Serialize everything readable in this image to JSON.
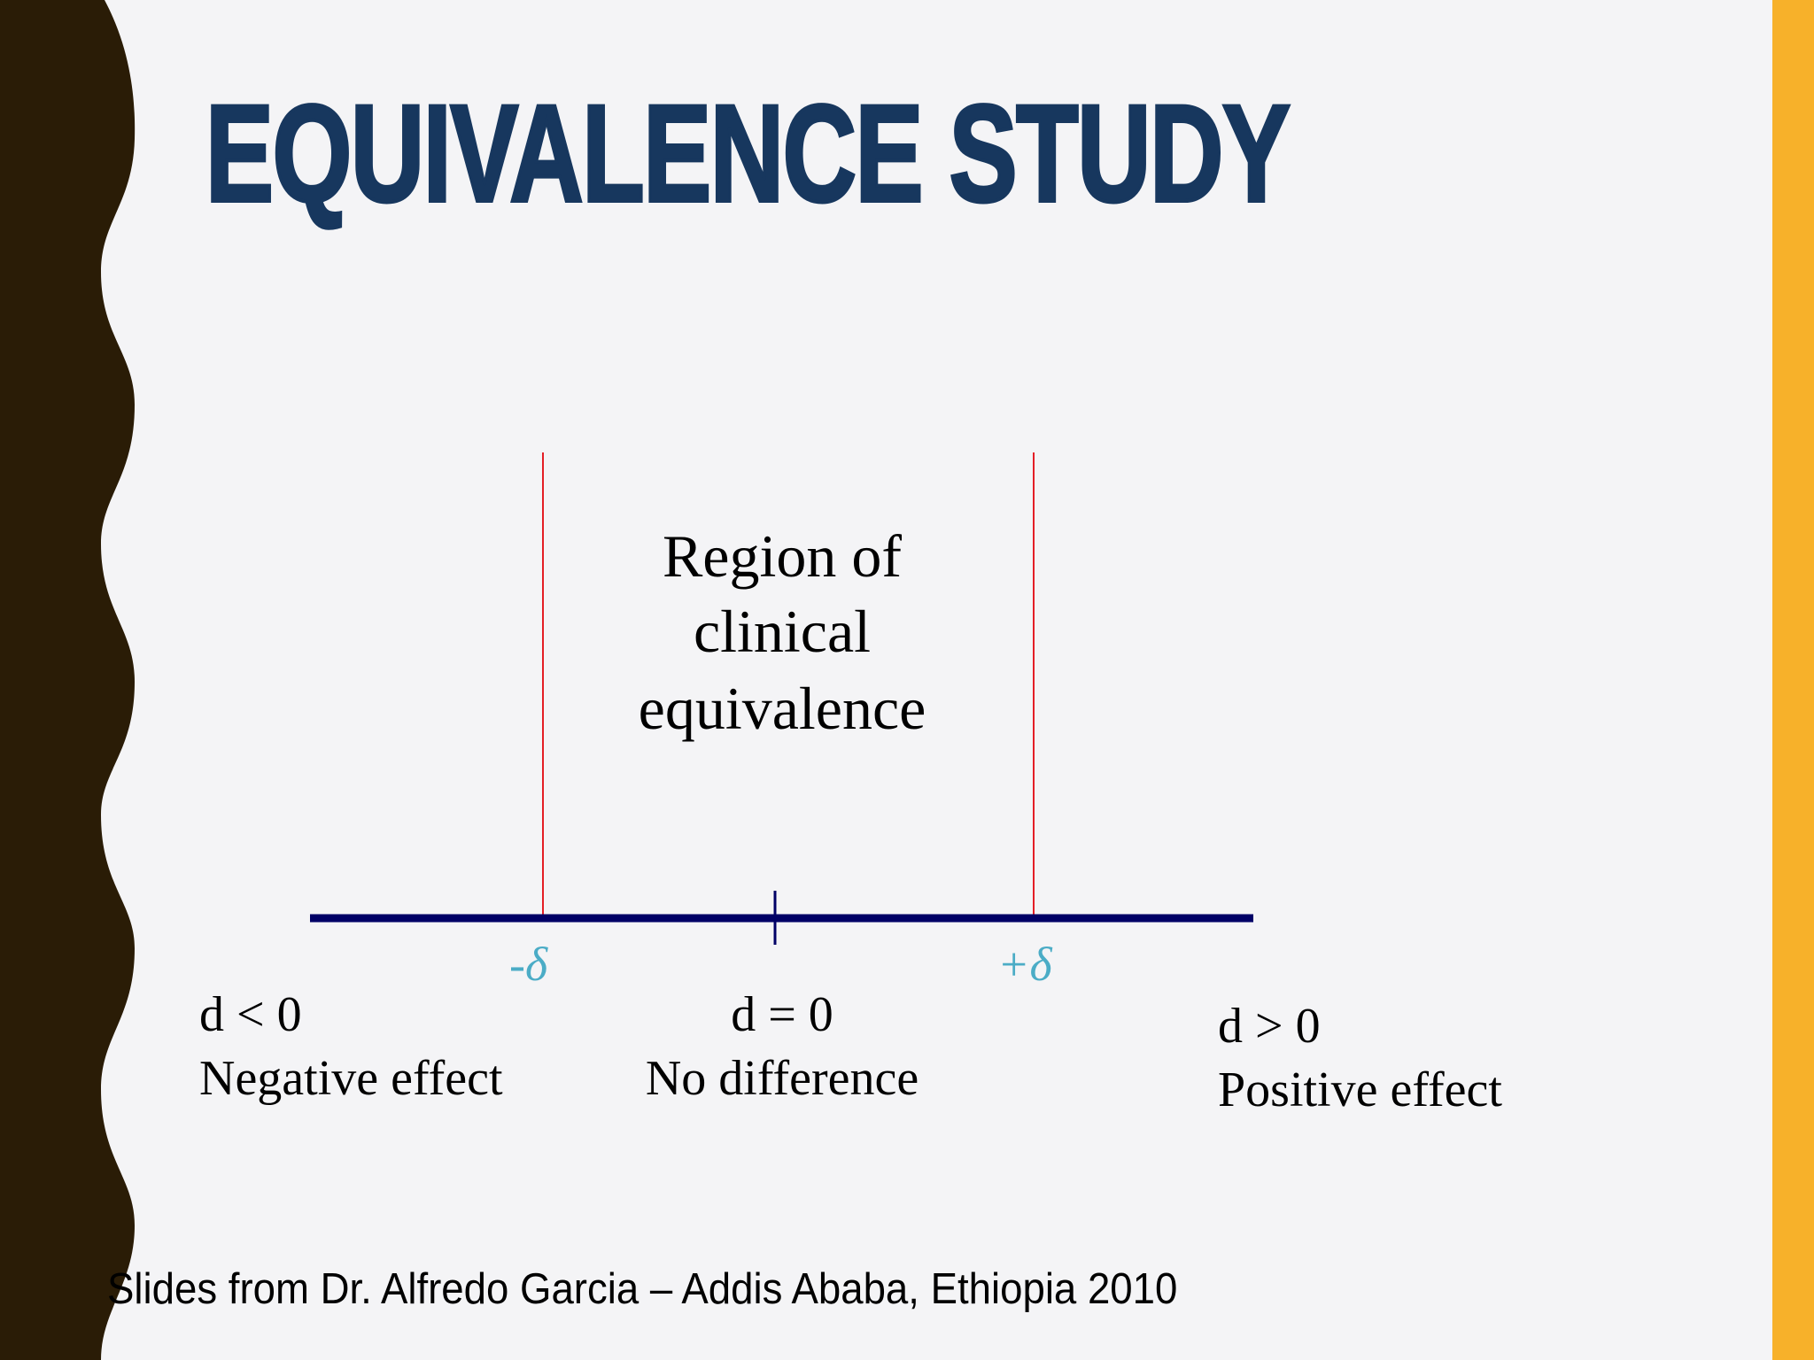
{
  "slide": {
    "title": "EQUIVALENCE STUDY",
    "region_lines": [
      "Region of",
      "clinical",
      "equivalence"
    ],
    "minus_delta": "-δ",
    "plus_delta": "+δ",
    "left": {
      "condition": "d < 0",
      "label": "Negative effect"
    },
    "center": {
      "condition": "d = 0",
      "label": "No difference"
    },
    "right": {
      "condition": "d > 0",
      "label": "Positive effect"
    },
    "footer": "Slides from Dr. Alfredo Garcia – Addis Ababa, Ethiopia 2010"
  },
  "colors": {
    "title": "#17375E",
    "left_band": "#2A1C06",
    "right_bar": "#F7B12A",
    "axis": "#000066",
    "margin_lines": "#E41E26",
    "delta": "#4BACC6"
  }
}
